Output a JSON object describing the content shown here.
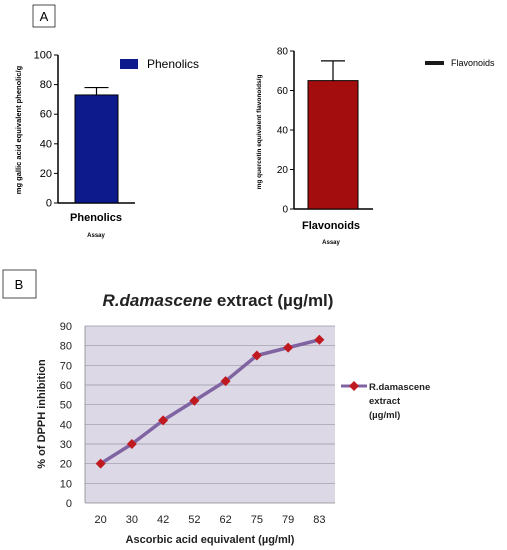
{
  "panels": {
    "a_label": "A",
    "b_label": "B"
  },
  "chart_data": [
    {
      "type": "bar",
      "categories": [
        "Phenolics"
      ],
      "values": [
        73
      ],
      "error": [
        5
      ],
      "ylabel": "mg gallic acid equivalent phenolic/g",
      "xlabel": "Assay",
      "ylim": [
        0,
        100
      ],
      "yticks": [
        0,
        20,
        40,
        60,
        80,
        100
      ],
      "legend": [
        "Phenolics"
      ],
      "legend_position": "top-right",
      "color": "#0d1a8c"
    },
    {
      "type": "bar",
      "categories": [
        "Flavonoids"
      ],
      "values": [
        65
      ],
      "error": [
        10
      ],
      "ylabel": "mg quercetin equivalent flavonoids/g",
      "xlabel": "Assay",
      "ylim": [
        0,
        80
      ],
      "yticks": [
        0,
        20,
        40,
        60,
        80
      ],
      "legend": [
        "Flavonoids"
      ],
      "legend_position": "top-right",
      "color": "#a40d0d"
    },
    {
      "type": "line",
      "title_italic": "R.damascene",
      "title_rest": " extract (µg/ml)",
      "categories": [
        "20",
        "30",
        "42",
        "52",
        "62",
        "75",
        "79",
        "83"
      ],
      "series": [
        {
          "name": "R.damascene extract (µg/ml)",
          "values": [
            20,
            30,
            42,
            52,
            62,
            75,
            79,
            83
          ]
        }
      ],
      "legend_lines": [
        "R.damascene",
        "extract",
        "(µg/ml)"
      ],
      "legend_position": "right",
      "xlabel": "Ascorbic acid equivalent (µg/ml)",
      "ylabel": "% of DPPH inhibition",
      "ylim": [
        0,
        90
      ],
      "yticks": [
        0,
        10,
        20,
        30,
        40,
        50,
        60,
        70,
        80,
        90
      ],
      "grid": true,
      "plot_bg": "#dcd8e6",
      "line_color": "#8064a2",
      "marker_color": "#c0191f"
    }
  ]
}
